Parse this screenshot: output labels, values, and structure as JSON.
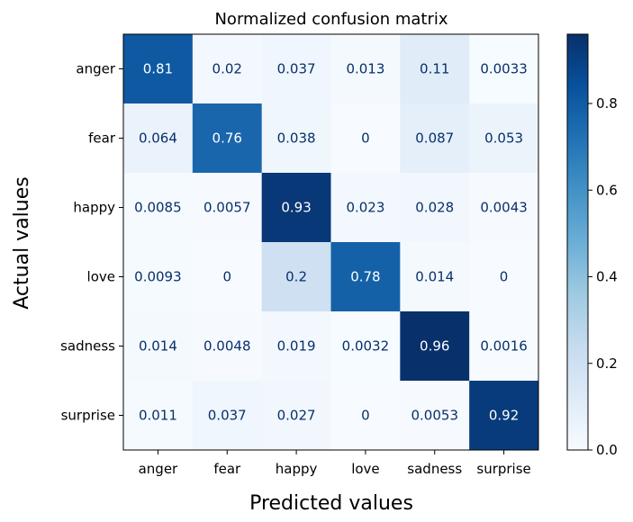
{
  "chart_data": {
    "type": "heatmap",
    "title": "Normalized confusion matrix",
    "xlabel": "Predicted values",
    "ylabel": "Actual values",
    "x_categories": [
      "anger",
      "fear",
      "happy",
      "love",
      "sadness",
      "surprise"
    ],
    "y_categories": [
      "anger",
      "fear",
      "happy",
      "love",
      "sadness",
      "surprise"
    ],
    "values": [
      [
        0.81,
        0.02,
        0.037,
        0.013,
        0.11,
        0.0033
      ],
      [
        0.064,
        0.76,
        0.038,
        0,
        0.087,
        0.053
      ],
      [
        0.0085,
        0.0057,
        0.93,
        0.023,
        0.028,
        0.0043
      ],
      [
        0.0093,
        0,
        0.2,
        0.78,
        0.014,
        0
      ],
      [
        0.014,
        0.0048,
        0.019,
        0.0032,
        0.96,
        0.0016
      ],
      [
        0.011,
        0.037,
        0.027,
        0,
        0.0053,
        0.92
      ]
    ],
    "value_labels": [
      [
        "0.81",
        "0.02",
        "0.037",
        "0.013",
        "0.11",
        "0.0033"
      ],
      [
        "0.064",
        "0.76",
        "0.038",
        "0",
        "0.087",
        "0.053"
      ],
      [
        "0.0085",
        "0.0057",
        "0.93",
        "0.023",
        "0.028",
        "0.0043"
      ],
      [
        "0.0093",
        "0",
        "0.2",
        "0.78",
        "0.014",
        "0"
      ],
      [
        "0.014",
        "0.0048",
        "0.019",
        "0.0032",
        "0.96",
        "0.0016"
      ],
      [
        "0.011",
        "0.037",
        "0.027",
        "0",
        "0.0053",
        "0.92"
      ]
    ],
    "colorbar": {
      "range": [
        0,
        0.96
      ],
      "ticks": [
        0.0,
        0.2,
        0.4,
        0.6,
        0.8
      ],
      "tick_labels": [
        "0.0",
        "0.2",
        "0.4",
        "0.6",
        "0.8"
      ],
      "colormap": "Blues"
    },
    "colors": {
      "text_dark": "#08306b",
      "text_light": "#ffffff"
    }
  }
}
